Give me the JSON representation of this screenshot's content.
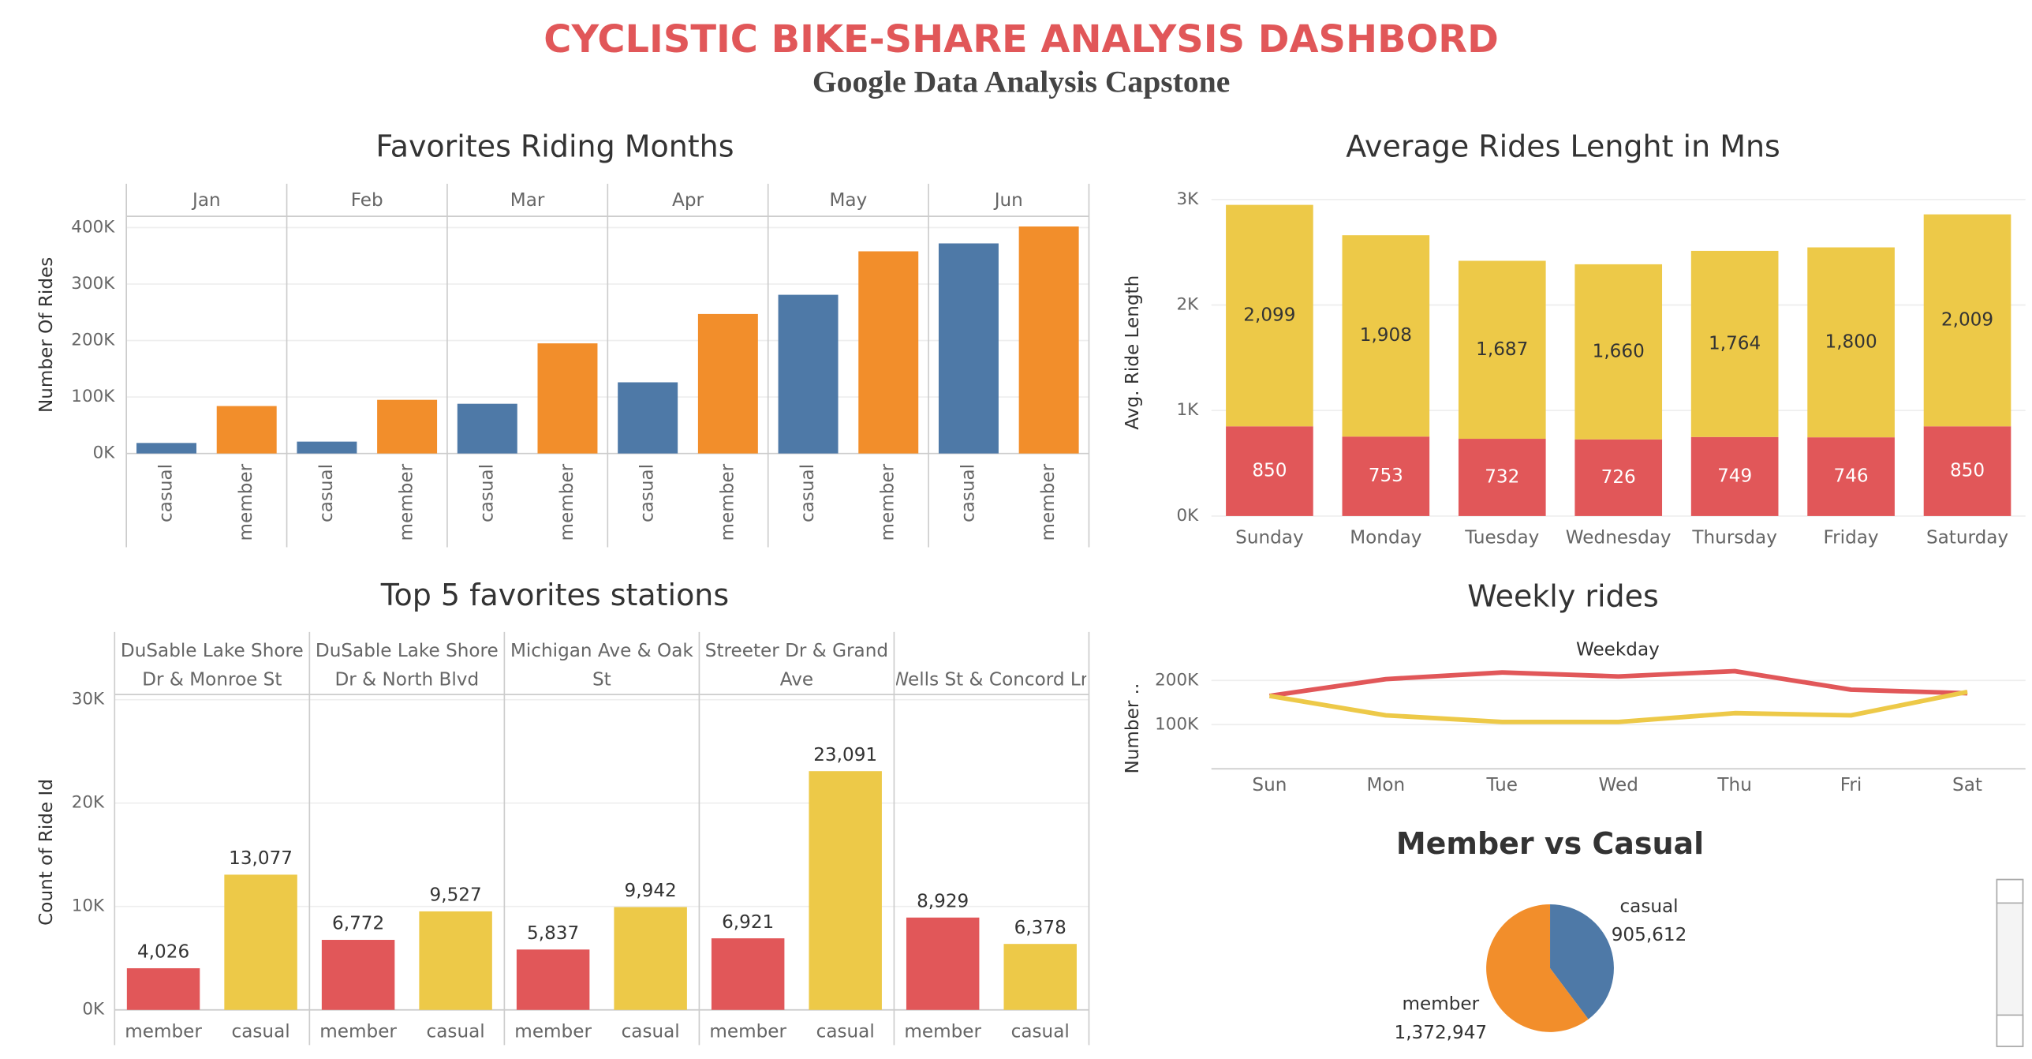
{
  "dashboard": {
    "title": "CYCLISTIC BIKE-SHARE ANALYSIS DASHBORD",
    "subtitle": "Google Data Analysis Capstone"
  },
  "chart_data": [
    {
      "type": "grouped-bar",
      "title": "Favorites Riding Months",
      "y_label": "Number Of Rides",
      "categories": [
        "Jan",
        "Feb",
        "Mar",
        "Apr",
        "May",
        "Jun"
      ],
      "series": [
        {
          "name": "casual",
          "color": "#4e79a7",
          "values": [
            18600,
            21000,
            88000,
            126000,
            281000,
            372000
          ]
        },
        {
          "name": "member",
          "color": "#f28e2b",
          "values": [
            84000,
            95000,
            195000,
            247000,
            358000,
            402000
          ]
        }
      ],
      "ylim": [
        0,
        420000
      ],
      "yticks": [
        {
          "value": 0,
          "label": "0K"
        },
        {
          "value": 100000,
          "label": "100K"
        },
        {
          "value": 200000,
          "label": "200K"
        },
        {
          "value": 300000,
          "label": "300K"
        },
        {
          "value": 400000,
          "label": "400K"
        }
      ],
      "grid": true
    },
    {
      "type": "stacked-bar",
      "title": "Average Rides Lenght in Mns",
      "y_label": "Avg. Ride Length",
      "categories": [
        "Sunday",
        "Monday",
        "Tuesday",
        "Wednesday",
        "Thursday",
        "Friday",
        "Saturday"
      ],
      "series": [
        {
          "color": "#e15759",
          "values": [
            850,
            753,
            732,
            726,
            749,
            746,
            850
          ]
        },
        {
          "color": "#edc948",
          "values": [
            2099,
            1908,
            1687,
            1660,
            1764,
            1800,
            2009
          ],
          "value_labels": [
            "2,099",
            "1,908",
            "1,687",
            "1,660",
            "1,764",
            "1,800",
            "2,009"
          ]
        }
      ],
      "ylim": [
        0,
        3100
      ],
      "yticks": [
        {
          "value": 0,
          "label": "0K"
        },
        {
          "value": 1000,
          "label": "1K"
        },
        {
          "value": 2000,
          "label": "2K"
        },
        {
          "value": 3000,
          "label": "3K"
        }
      ],
      "grid": true
    },
    {
      "type": "grouped-bar",
      "title": "Top 5 favorites stations",
      "y_label": "Count of Ride Id",
      "categories": [
        "DuSable Lake Shore Dr & Monroe St",
        "DuSable Lake Shore Dr & North Blvd",
        "Michigan Ave & Oak St",
        "Streeter Dr & Grand Ave",
        "Wells St & Concord Ln"
      ],
      "series": [
        {
          "name": "member",
          "color": "#e15759",
          "values": [
            4026,
            6772,
            5837,
            6921,
            8929
          ],
          "value_labels": [
            "4,026",
            "6,772",
            "5,837",
            "6,921",
            "8,929"
          ]
        },
        {
          "name": "casual",
          "color": "#edc948",
          "values": [
            13077,
            9527,
            9942,
            23091,
            6378
          ],
          "value_labels": [
            "13,077",
            "9,527",
            "9,942",
            "23,091",
            "6,378"
          ]
        }
      ],
      "ylim": [
        0,
        30500
      ],
      "yticks": [
        {
          "value": 0,
          "label": "0K"
        },
        {
          "value": 10000,
          "label": "10K"
        },
        {
          "value": 20000,
          "label": "20K"
        },
        {
          "value": 30000,
          "label": "30K"
        }
      ],
      "grid": true
    },
    {
      "type": "line",
      "title": "Weekly rides",
      "x_label": "Weekday",
      "y_label": "Number ..",
      "categories": [
        "Sun",
        "Mon",
        "Tue",
        "Wed",
        "Thu",
        "Fri",
        "Sat"
      ],
      "series": [
        {
          "color": "#e15759",
          "values": [
            165000,
            203000,
            218000,
            209000,
            221000,
            179000,
            171000
          ]
        },
        {
          "color": "#edc948",
          "values": [
            165000,
            121000,
            106000,
            106000,
            126000,
            121000,
            174000
          ]
        }
      ],
      "ylim": [
        0,
        230000
      ],
      "yticks": [
        {
          "value": 100000,
          "label": "100K"
        },
        {
          "value": 200000,
          "label": "200K"
        }
      ],
      "grid": true
    },
    {
      "type": "pie",
      "title": "Member vs Casual",
      "categories": [
        "casual",
        "member"
      ],
      "values": [
        905612,
        1372947
      ],
      "value_labels": [
        "905,612",
        "1,372,947"
      ],
      "colors": [
        "#4e79a7",
        "#f28e2b"
      ]
    }
  ]
}
